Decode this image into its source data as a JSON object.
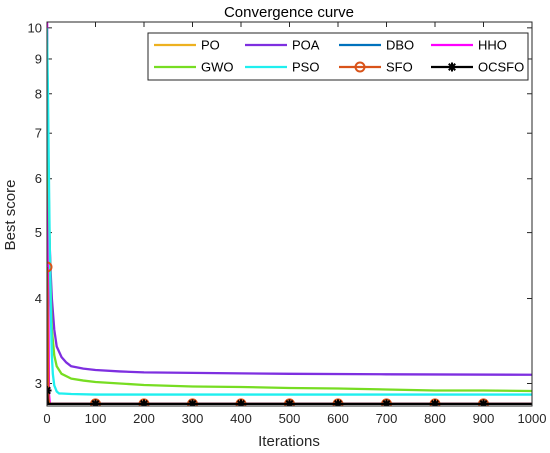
{
  "chart_data": {
    "type": "line",
    "title": "Convergence curve",
    "xlabel": "Iterations",
    "ylabel": "Best score",
    "xlim": [
      0,
      1000
    ],
    "ylim": [
      2.78,
      10.2
    ],
    "yscale": "log",
    "xticks": [
      0,
      100,
      200,
      300,
      400,
      500,
      600,
      700,
      800,
      900,
      1000
    ],
    "yticks": [
      3,
      4,
      5,
      6,
      7,
      8,
      9,
      10
    ],
    "legend_position": "top-right",
    "legend_columns": 4,
    "series": [
      {
        "name": "PO",
        "color": "#EDB120",
        "marker": "none",
        "x": [
          0,
          1,
          2,
          3,
          5,
          1000
        ],
        "y": [
          4.4,
          3.9,
          3.2,
          2.9,
          2.8,
          2.8
        ]
      },
      {
        "name": "POA",
        "color": "#7E2FE0",
        "marker": "none",
        "x": [
          0,
          2,
          4,
          6,
          8,
          10,
          15,
          20,
          30,
          40,
          50,
          75,
          100,
          150,
          200,
          300,
          400,
          500,
          700,
          1000
        ],
        "y": [
          10.2,
          6.2,
          5.2,
          4.7,
          4.3,
          4.0,
          3.6,
          3.4,
          3.28,
          3.22,
          3.18,
          3.155,
          3.14,
          3.125,
          3.115,
          3.11,
          3.105,
          3.1,
          3.095,
          3.09
        ]
      },
      {
        "name": "DBO",
        "color": "#0072BD",
        "marker": "none",
        "x": [
          0,
          1,
          2,
          3,
          1000
        ],
        "y": [
          4.5,
          3.3,
          2.85,
          2.8,
          2.8
        ]
      },
      {
        "name": "HHO",
        "color": "#FF00FF",
        "marker": "none",
        "x": [
          0,
          1,
          2,
          3,
          4,
          6,
          1000
        ],
        "y": [
          10.2,
          8.0,
          5.5,
          3.8,
          2.9,
          2.8,
          2.8
        ]
      },
      {
        "name": "GWO",
        "color": "#77DD22",
        "marker": "none",
        "x": [
          0,
          2,
          4,
          6,
          8,
          10,
          15,
          20,
          30,
          50,
          75,
          100,
          150,
          200,
          300,
          400,
          500,
          600,
          700,
          800,
          900,
          1000
        ],
        "y": [
          9.5,
          7.2,
          5.5,
          4.6,
          4.0,
          3.6,
          3.3,
          3.18,
          3.1,
          3.05,
          3.03,
          3.015,
          3.0,
          2.985,
          2.97,
          2.965,
          2.955,
          2.95,
          2.94,
          2.93,
          2.93,
          2.925
        ]
      },
      {
        "name": "PSO",
        "color": "#1FEFEF",
        "marker": "none",
        "x": [
          0,
          2,
          4,
          6,
          8,
          10,
          12,
          15,
          20,
          25,
          30,
          50,
          100,
          1000
        ],
        "y": [
          10.0,
          8.0,
          6.0,
          4.6,
          3.8,
          3.3,
          3.1,
          2.98,
          2.92,
          2.9,
          2.9,
          2.895,
          2.89,
          2.89
        ]
      },
      {
        "name": "SFO",
        "color": "#D95319",
        "marker": "o",
        "x": [
          0,
          1,
          2,
          3,
          5,
          1000
        ],
        "y": [
          4.45,
          4.0,
          3.2,
          2.85,
          2.8,
          2.8
        ],
        "marker_x": [
          0,
          100,
          200,
          300,
          400,
          500,
          600,
          700,
          800,
          900
        ],
        "marker_y": [
          4.45,
          2.8,
          2.8,
          2.8,
          2.8,
          2.8,
          2.8,
          2.8,
          2.8,
          2.8
        ]
      },
      {
        "name": "OCSFO",
        "color": "#000000",
        "marker": "*",
        "x": [
          0,
          1,
          2,
          3,
          1000
        ],
        "y": [
          2.93,
          2.84,
          2.8,
          2.8,
          2.8
        ],
        "marker_x": [
          0,
          100,
          200,
          300,
          400,
          500,
          600,
          700,
          800,
          900
        ],
        "marker_y": [
          2.93,
          2.8,
          2.8,
          2.8,
          2.8,
          2.8,
          2.8,
          2.8,
          2.8,
          2.8
        ]
      }
    ]
  }
}
